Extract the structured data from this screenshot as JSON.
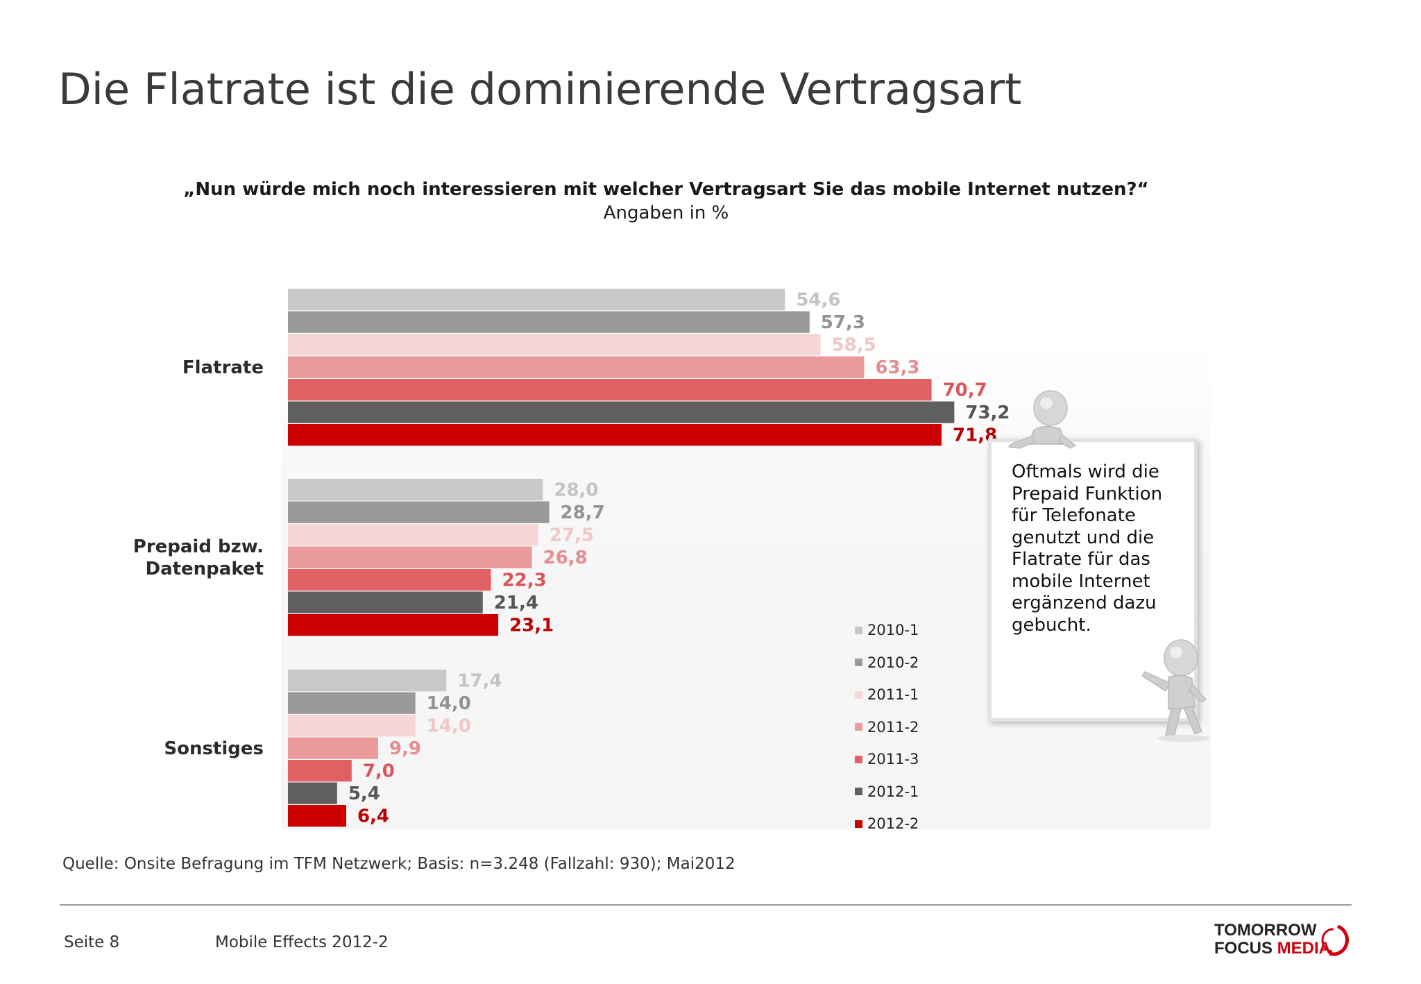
{
  "page": {
    "title": "Die Flatrate ist die dominierende Vertragsart",
    "question": "„Nun würde mich noch interessieren mit welcher Vertragsart Sie das mobile Internet nutzen?“",
    "unit": "Angaben in %",
    "source": "Quelle: Onsite Befragung im TFM Netzwerk; Basis: n=3.248 (Fallzahl: 930); Mai2012",
    "note": "Oftmals wird die Prepaid Funktion für Telefonate genutzt und die Flatrate für das mobile Internet ergänzend dazu gebucht.",
    "footer_page": "Seite 8",
    "footer_name": "Mobile Effects 2012-2",
    "logo_line1": "TOMORROW",
    "logo_focus": "FOCUS",
    "logo_media": "MEDIA",
    "logo_colors": {
      "dark": "#222222",
      "red": "#d0000a"
    }
  },
  "chart_data": {
    "type": "bar",
    "orientation": "horizontal",
    "title": "„Nun würde mich noch interessieren mit welcher Vertragsart Sie das mobile Internet nutzen?“",
    "subtitle": "Angaben in %",
    "categories": [
      "Flatrate",
      "Prepaid bzw. Datenpaket",
      "Sonstiges"
    ],
    "category_lines": [
      [
        "Flatrate"
      ],
      [
        "Prepaid bzw.",
        "Datenpaket"
      ],
      [
        "Sonstiges"
      ]
    ],
    "series": [
      {
        "name": "2010-1",
        "color": "#c8c8c8",
        "label_color": "#c4c4c4",
        "values": [
          54.6,
          28.0,
          17.4
        ],
        "labels": [
          "54,6",
          "28,0",
          "17,4"
        ]
      },
      {
        "name": "2010-2",
        "color": "#999999",
        "label_color": "#939393",
        "values": [
          57.3,
          28.7,
          14.0
        ],
        "labels": [
          "57,3",
          "28,7",
          "14,0"
        ]
      },
      {
        "name": "2011-1",
        "color": "#f4d6d6",
        "label_color": "#f0c6c8",
        "values": [
          58.5,
          27.5,
          14.0
        ],
        "labels": [
          "58,5",
          "27,5",
          "14,0"
        ]
      },
      {
        "name": "2011-2",
        "color": "#ea9a9a",
        "label_color": "#e48e90",
        "values": [
          63.3,
          26.8,
          9.9
        ],
        "labels": [
          "63,3",
          "26,8",
          "9,9"
        ]
      },
      {
        "name": "2011-3",
        "color": "#e06064",
        "label_color": "#db5458",
        "values": [
          70.7,
          22.3,
          7.0
        ],
        "labels": [
          "70,7",
          "22,3",
          "7,0"
        ]
      },
      {
        "name": "2012-1",
        "color": "#5f5f5f",
        "label_color": "#555555",
        "values": [
          73.2,
          21.4,
          5.4
        ],
        "labels": [
          "73,2",
          "21,4",
          "5,4"
        ]
      },
      {
        "name": "2012-2",
        "color": "#cc0000",
        "label_color": "#b80000",
        "values": [
          71.8,
          23.1,
          6.4
        ],
        "labels": [
          "71,8",
          "23,1",
          "6,4"
        ]
      }
    ],
    "xlim": [
      0,
      100
    ],
    "grid": false,
    "legend_position": "right"
  }
}
